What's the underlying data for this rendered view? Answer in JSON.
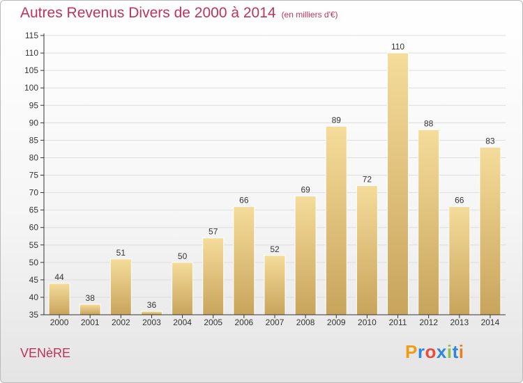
{
  "header": {
    "title": "Autres Revenus Divers de 2000 à 2014",
    "unit": "(en milliers d'€)"
  },
  "footer": {
    "city": "VENèRE",
    "logo_letters": [
      "P",
      "r",
      "o",
      "x",
      "i",
      "t",
      "i"
    ],
    "logo_colors": [
      "#f39c12",
      "#2e86de",
      "#e74c3c",
      "#2e86de",
      "#8bc34a",
      "#2e86de",
      "#e67e22"
    ]
  },
  "colors": {
    "bar_light": "#f5dc9a",
    "bar_dark": "#c8a45c",
    "bar_border": "#ffffff",
    "grid": "#dddddd",
    "axis": "#333333"
  },
  "chart_data": {
    "type": "bar",
    "title": "Autres Revenus Divers de 2000 à 2014",
    "subtitle": "(en milliers d'€)",
    "xlabel": "",
    "ylabel": "",
    "categories": [
      "2000",
      "2001",
      "2002",
      "2003",
      "2004",
      "2005",
      "2006",
      "2007",
      "2008",
      "2009",
      "2010",
      "2011",
      "2012",
      "2013",
      "2014"
    ],
    "values": [
      44,
      38,
      51,
      36,
      50,
      57,
      66,
      52,
      69,
      89,
      72,
      110,
      88,
      66,
      83
    ],
    "ylim": [
      35,
      115
    ],
    "yticks": [
      35,
      40,
      45,
      50,
      55,
      60,
      65,
      70,
      75,
      80,
      85,
      90,
      95,
      100,
      105,
      110,
      115
    ],
    "grid": true,
    "legend": "none"
  }
}
